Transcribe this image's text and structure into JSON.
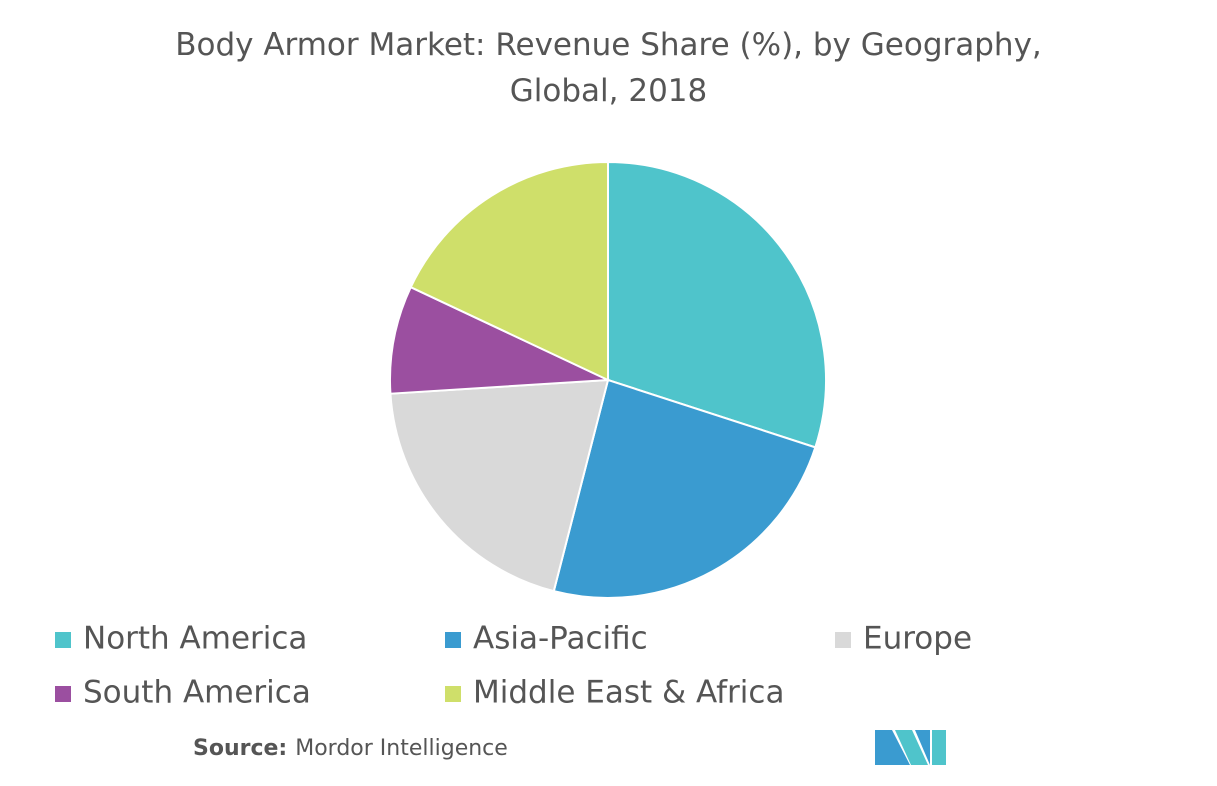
{
  "chart_data": {
    "type": "pie",
    "title": "Body Armor Market: Revenue Share (%), by Geography, Global, 2018",
    "categories": [
      "North America",
      "Asia-Pacific",
      "Europe",
      "South America",
      "Middle East & Africa"
    ],
    "values": [
      30,
      24,
      20,
      8,
      18
    ],
    "colors": [
      "#4fc4cb",
      "#3a9bd0",
      "#d9d9d9",
      "#9b4fa0",
      "#cfdf6a"
    ],
    "source_label": "Source:",
    "source": "Mordor Intelligence"
  }
}
